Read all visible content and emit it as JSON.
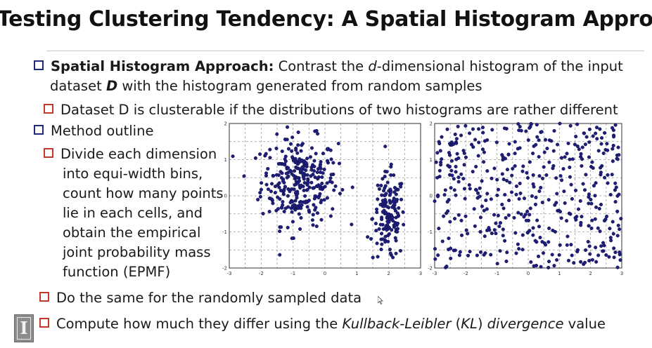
{
  "title": "Testing Clustering Tendency: A Spatial Histogram Approach",
  "bullets": {
    "b1_bold": "Spatial Histogram Approach:",
    "b1_text": " Contrast the ",
    "b1_d": "d",
    "b1_text2": "-dimensional histogram of the input",
    "b1_line2a": "dataset ",
    "b1_line2_D": "D",
    "b1_line2b": " with the histogram generated from random samples",
    "b1_sub": "Dataset D is clusterable if the distributions of two histograms are rather different",
    "b2": "Method outline",
    "b2_sub1_lines": [
      "Divide each dimension",
      "into equi-width bins,",
      "count how many points",
      "lie in each cells, and",
      "obtain the empirical",
      "joint probability mass",
      "function (EPMF)"
    ],
    "b2_sub2": "Do the same for the randomly sampled data",
    "b2_sub3a": "Compute how much they differ using the ",
    "b2_sub3_kl1": "Kullback-Leibler",
    "b2_sub3b": " (",
    "b2_sub3_kl2": "KL",
    "b2_sub3c": ") ",
    "b2_sub3_kl3": "divergence",
    "b2_sub3d": " value"
  },
  "logo_letter": "I",
  "colors": {
    "point": "#1f1f7a",
    "bullet_main": "#1f2a7a",
    "bullet_sub": "#c0392b"
  },
  "chart_data": [
    {
      "type": "scatter",
      "xlim": [
        -3,
        3
      ],
      "ylim": [
        -2,
        2
      ],
      "xticks": [
        "-3",
        "-2",
        "-1",
        "0",
        "1",
        "2",
        "3"
      ],
      "yticks": [
        "-2",
        "-1",
        "0",
        "1",
        "2"
      ],
      "grid": true,
      "description_points": "two clusters: centered near (-0.8, 0.4) and (2.0, -0.6)",
      "clusters": [
        {
          "cx": -0.8,
          "cy": 0.4,
          "sx": 0.6,
          "sy": 0.6,
          "n": 300
        },
        {
          "cx": 2.0,
          "cy": -0.6,
          "sx": 0.25,
          "sy": 0.6,
          "n": 150
        }
      ]
    },
    {
      "type": "scatter",
      "xlim": [
        -3,
        3
      ],
      "ylim": [
        -2,
        2
      ],
      "xticks": [
        "-3",
        "-2",
        "-1",
        "0",
        "1",
        "2",
        "3"
      ],
      "yticks": [
        "-2",
        "-1",
        "0",
        "1",
        "2"
      ],
      "grid": true,
      "uniform_n": 450
    }
  ]
}
